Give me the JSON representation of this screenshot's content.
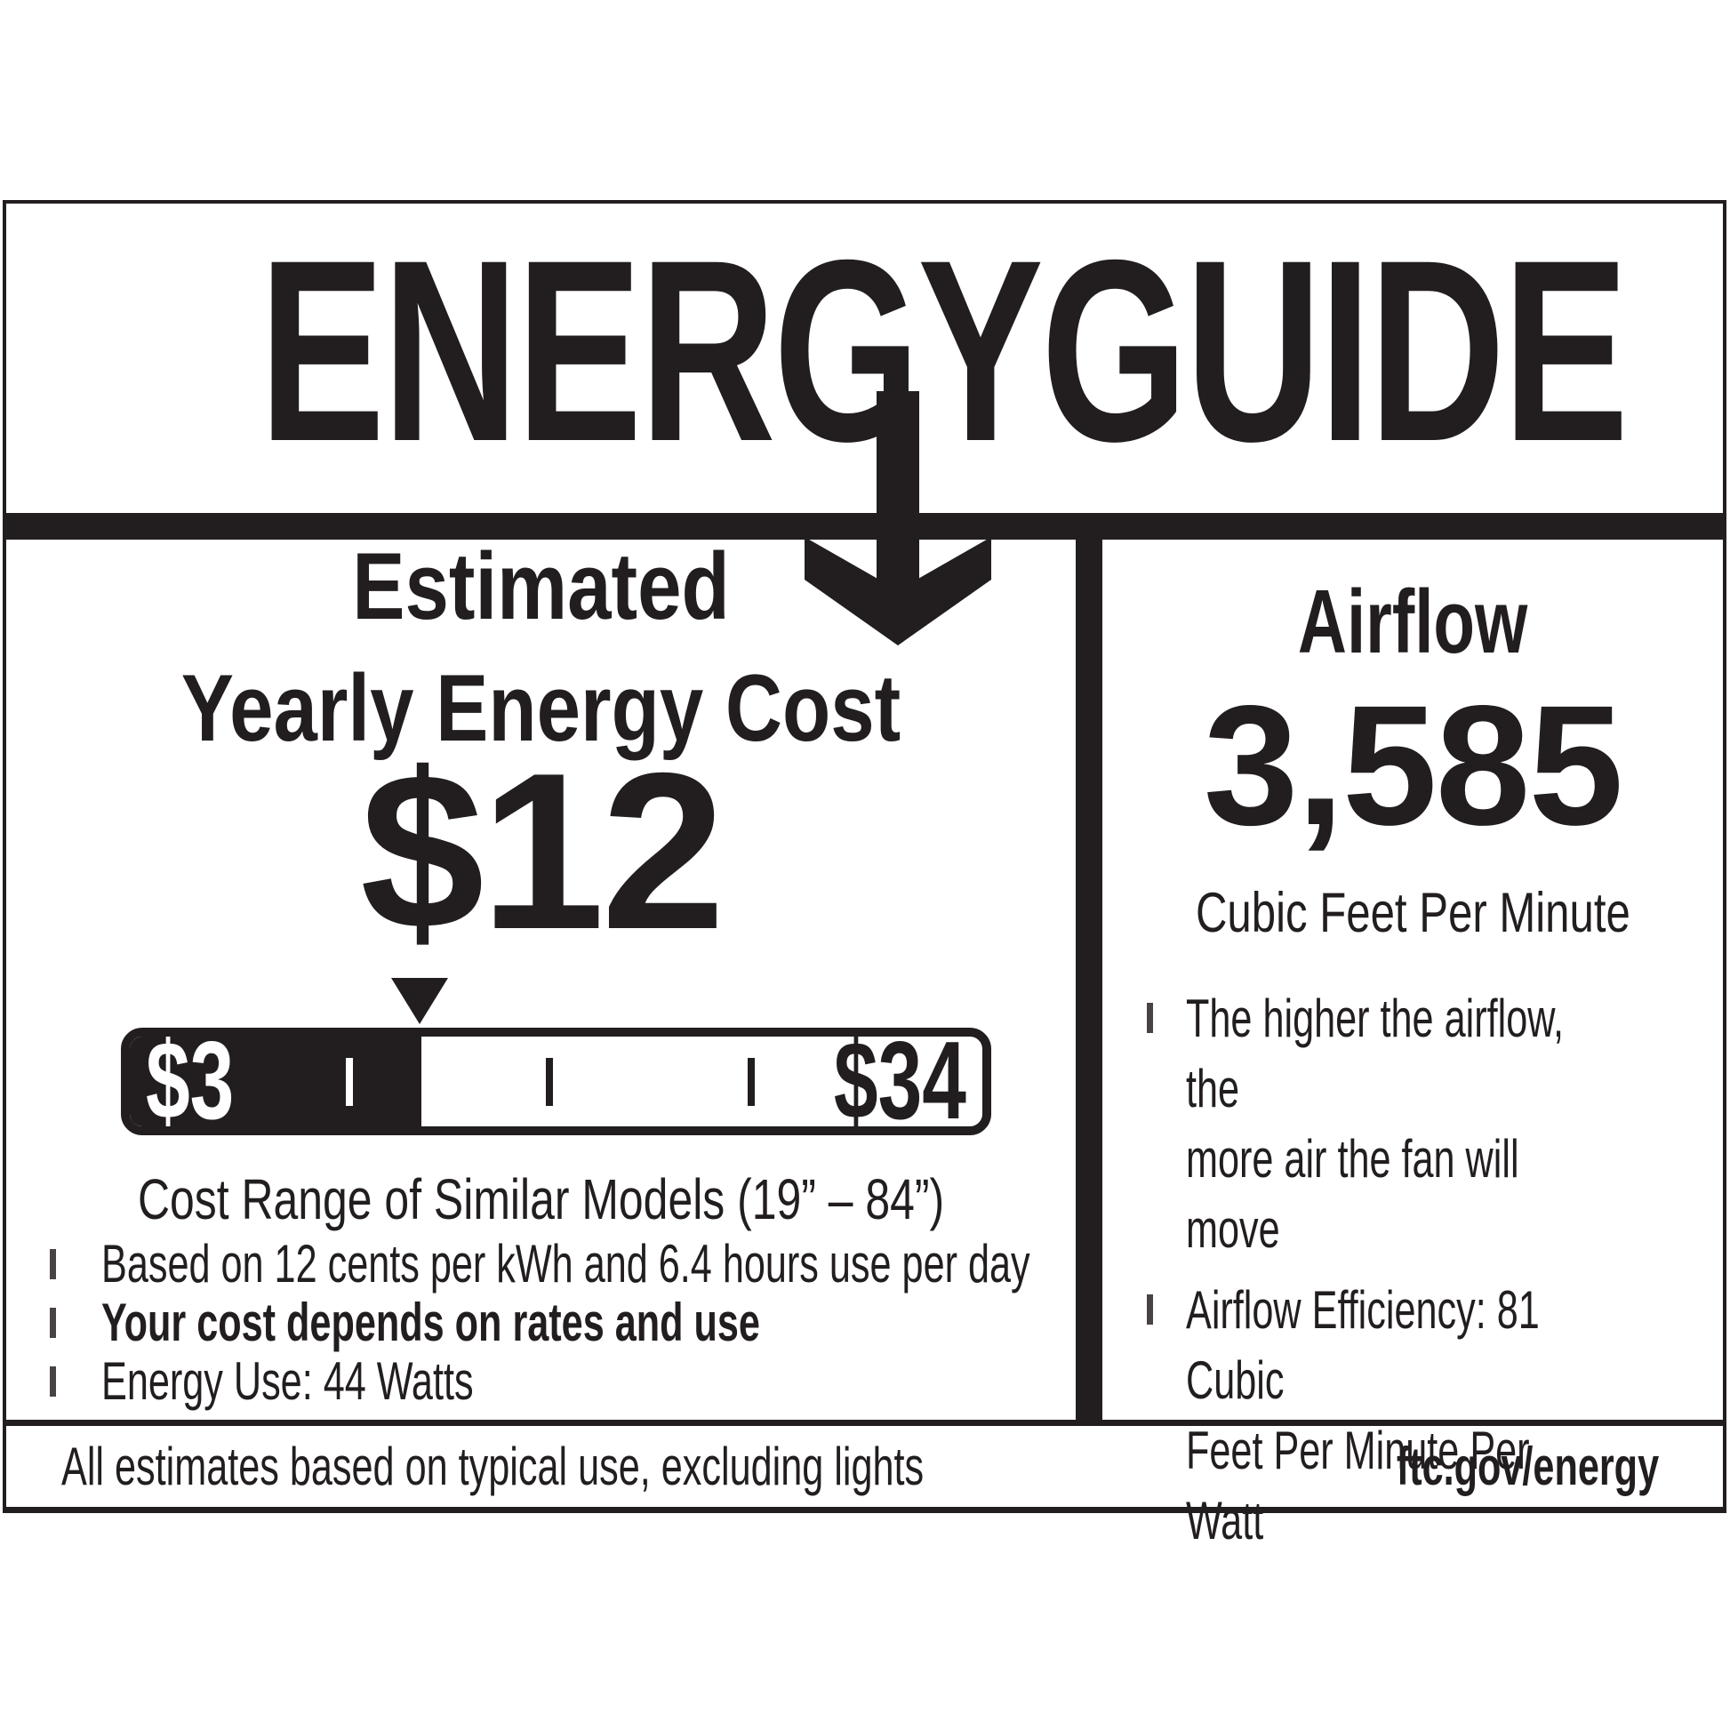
{
  "label": {
    "title": "ENERGYGUIDE",
    "ink_color": "#221e1f",
    "left_panel": {
      "heading_line1": "Estimated",
      "heading_line2": "Yearly Energy Cost",
      "cost_value": "$12",
      "scale": {
        "min_label": "$3",
        "max_label": "$34",
        "marker_value": "$12",
        "fill_percent": 34.2,
        "ticks_pct": [
          25.8,
          49.2,
          72.9
        ]
      },
      "caption": "Cost Range of Similar Models (19” – 84”)",
      "bullets": [
        "Based on 12 cents per kWh and 6.4 hours use per day",
        "Your cost depends on rates and use",
        "Energy Use: 44 Watts"
      ]
    },
    "right_panel": {
      "heading": "Airflow",
      "value": "3,585",
      "unit": "Cubic Feet Per Minute",
      "bullets": [
        "The higher the airflow, the\nmore air the fan will move",
        "Airflow Efficiency: 81 Cubic\nFeet Per Minute Per Watt"
      ]
    },
    "footer": {
      "left": "All estimates based on typical use, excluding lights",
      "right": "ftc.gov/energy"
    }
  }
}
